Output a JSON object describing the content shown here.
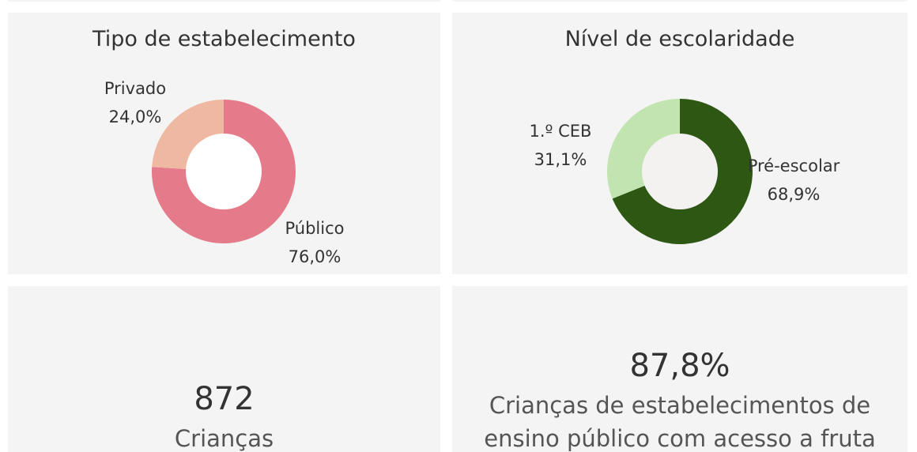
{
  "colors": {
    "panel_bg": "#f4f4f4",
    "publico": "#e57b8a",
    "privado": "#efb8a2",
    "pre_escolar": "#2f5714",
    "ceb": "#c1e4b0",
    "hole": "#ffffff",
    "hole_nivel": "#f4f1f1"
  },
  "chart_data": [
    {
      "type": "pie",
      "title": "Tipo de estabelecimento",
      "slices": [
        {
          "label": "Público",
          "value_label": "76,0%",
          "value": 76.0
        },
        {
          "label": "Privado",
          "value_label": "24,0%",
          "value": 24.0
        }
      ]
    },
    {
      "type": "pie",
      "title": "Nível de escolaridade",
      "slices": [
        {
          "label": "Pré-escolar",
          "value_label": "68,9%",
          "value": 68.9
        },
        {
          "label": "1.º CEB",
          "value_label": "31,1%",
          "value": 31.1
        }
      ]
    }
  ],
  "kpi_count": {
    "value": "872",
    "label": "Crianças"
  },
  "kpi_pct": {
    "value": "87,8%",
    "line1": "Crianças de estabelecimentos de",
    "line2": "ensino público com acesso a fruta"
  }
}
